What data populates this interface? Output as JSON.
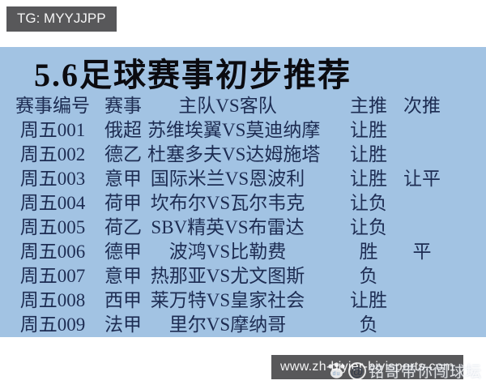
{
  "header": {
    "tg_label": "TG: MYYJJPP"
  },
  "panel": {
    "title": "5.6足球赛事初步推荐",
    "columns": {
      "code": "赛事编号",
      "league": "赛事",
      "teams": "主队VS客队",
      "main": "主推",
      "second": "次推"
    },
    "rows": [
      {
        "code": "周五001",
        "league": "俄超",
        "teams": "苏维埃翼VS莫迪纳摩",
        "main": "让胜",
        "second": ""
      },
      {
        "code": "周五002",
        "league": "德乙",
        "teams": "杜塞多夫VS达姆施塔",
        "main": "让胜",
        "second": ""
      },
      {
        "code": "周五003",
        "league": "意甲",
        "teams": "国际米兰VS恩波利",
        "main": "让胜",
        "second": "让平"
      },
      {
        "code": "周五004",
        "league": "荷甲",
        "teams": "坎布尔VS瓦尔韦克",
        "main": "让负",
        "second": ""
      },
      {
        "code": "周五005",
        "league": "荷乙",
        "teams": "SBV精英VS布雷达",
        "main": "让负",
        "second": ""
      },
      {
        "code": "周五006",
        "league": "德甲",
        "teams": "波鸿VS比勒费",
        "main": "胜",
        "second": "平"
      },
      {
        "code": "周五007",
        "league": "意甲",
        "teams": "热那亚VS尤文图斯",
        "main": "负",
        "second": ""
      },
      {
        "code": "周五008",
        "league": "西甲",
        "teams": "莱万特VS皇家社会",
        "main": "让胜",
        "second": ""
      },
      {
        "code": "周五009",
        "league": "法甲",
        "teams": "里尔VS摩纳哥",
        "main": "负",
        "second": ""
      }
    ]
  },
  "watermark": {
    "icon": "paw-icon",
    "at": "@",
    "text": "铭哥带你闯球坛"
  },
  "footer": {
    "website": "www.zh-biyier-biyisports.com"
  },
  "colors": {
    "panel_bg": "#a2c3e3",
    "box_bg": "#58585a",
    "title_color": "#0b0b10",
    "text_color": "#1d2c52",
    "watermark_color": "rgba(255,255,255,0.8)"
  }
}
